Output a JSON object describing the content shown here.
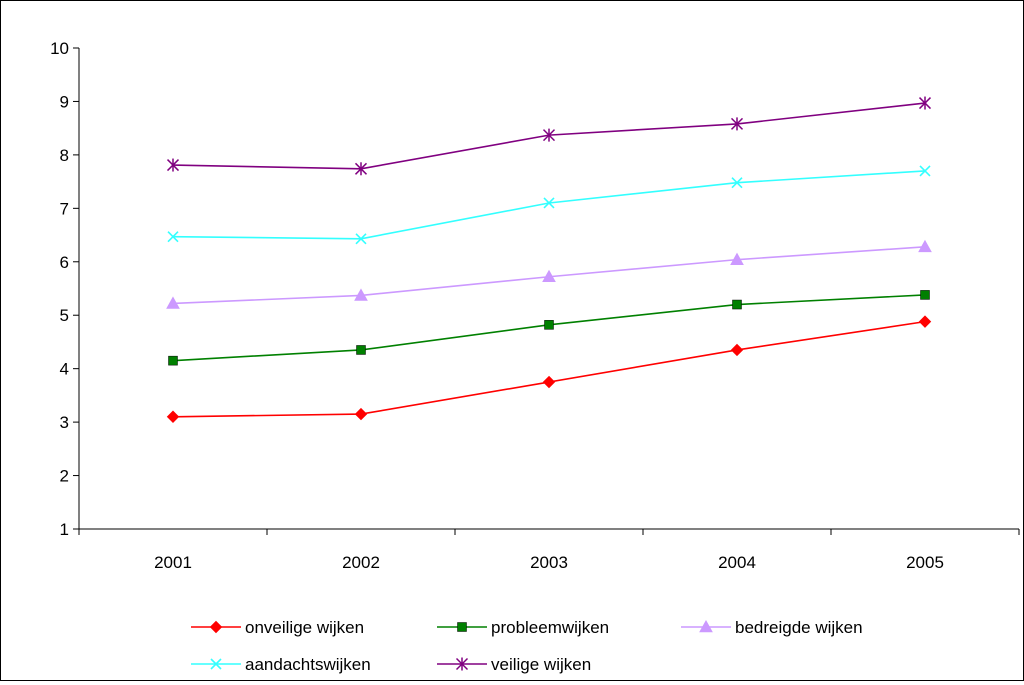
{
  "chart_data": {
    "type": "line",
    "title": "",
    "xlabel": "",
    "ylabel": "",
    "categories": [
      "2001",
      "2002",
      "2003",
      "2004",
      "2005"
    ],
    "ylim": [
      1,
      10
    ],
    "yticks": [
      1,
      2,
      3,
      4,
      5,
      6,
      7,
      8,
      9,
      10
    ],
    "grid": false,
    "legend_position": "bottom",
    "series": [
      {
        "name": "onveilige wijken",
        "values": [
          3.1,
          3.15,
          3.75,
          4.35,
          4.88
        ],
        "color": "#ff0000",
        "marker": "diamond"
      },
      {
        "name": "probleemwijken",
        "values": [
          4.15,
          4.35,
          4.82,
          5.2,
          5.38
        ],
        "color": "#008000",
        "marker": "square"
      },
      {
        "name": "bedreigde wijken",
        "values": [
          5.22,
          5.37,
          5.72,
          6.04,
          6.28
        ],
        "color": "#cc99ff",
        "marker": "triangle"
      },
      {
        "name": "aandachtswijken",
        "values": [
          6.47,
          6.43,
          7.1,
          7.48,
          7.7
        ],
        "color": "#33ffff",
        "marker": "x"
      },
      {
        "name": "veilige wijken",
        "values": [
          7.81,
          7.74,
          8.37,
          8.58,
          8.97
        ],
        "color": "#800080",
        "marker": "star"
      }
    ]
  }
}
